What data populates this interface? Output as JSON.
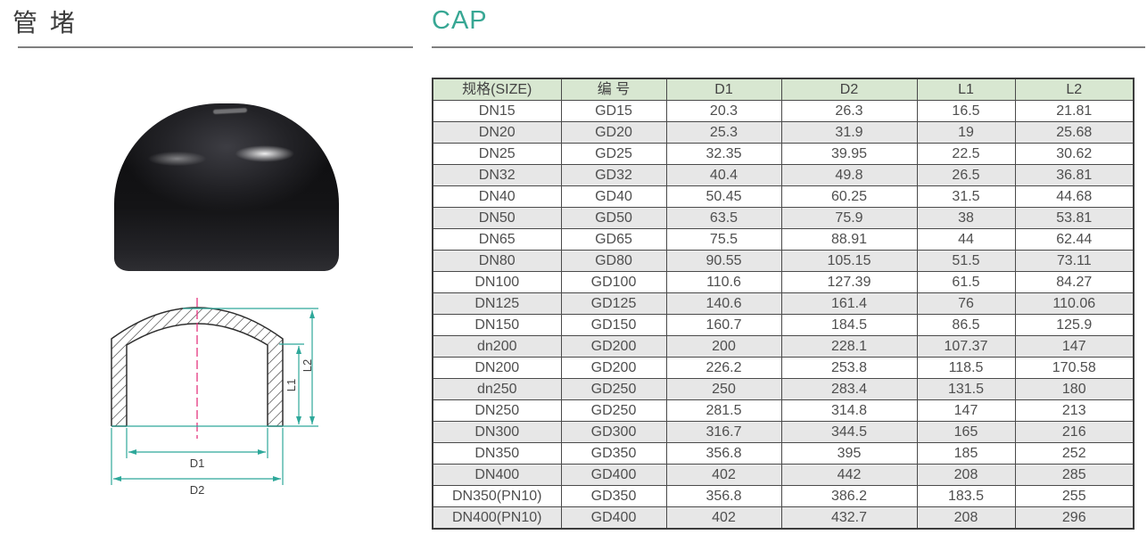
{
  "header": {
    "title_cn": "管 堵",
    "title_en": "CAP"
  },
  "drawing": {
    "labels": {
      "d1": "D1",
      "d2": "D2",
      "l1": "L1",
      "l2": "L2"
    }
  },
  "table": {
    "headers": [
      "规格(SIZE)",
      "编 号",
      "D1",
      "D2",
      "L1",
      "L2"
    ],
    "rows": [
      [
        "DN15",
        "GD15",
        "20.3",
        "26.3",
        "16.5",
        "21.81"
      ],
      [
        "DN20",
        "GD20",
        "25.3",
        "31.9",
        "19",
        "25.68"
      ],
      [
        "DN25",
        "GD25",
        "32.35",
        "39.95",
        "22.5",
        "30.62"
      ],
      [
        "DN32",
        "GD32",
        "40.4",
        "49.8",
        "26.5",
        "36.81"
      ],
      [
        "DN40",
        "GD40",
        "50.45",
        "60.25",
        "31.5",
        "44.68"
      ],
      [
        "DN50",
        "GD50",
        "63.5",
        "75.9",
        "38",
        "53.81"
      ],
      [
        "DN65",
        "GD65",
        "75.5",
        "88.91",
        "44",
        "62.44"
      ],
      [
        "DN80",
        "GD80",
        "90.55",
        "105.15",
        "51.5",
        "73.11"
      ],
      [
        "DN100",
        "GD100",
        "110.6",
        "127.39",
        "61.5",
        "84.27"
      ],
      [
        "DN125",
        "GD125",
        "140.6",
        "161.4",
        "76",
        "110.06"
      ],
      [
        "DN150",
        "GD150",
        "160.7",
        "184.5",
        "86.5",
        "125.9"
      ],
      [
        "dn200",
        "GD200",
        "200",
        "228.1",
        "107.37",
        "147"
      ],
      [
        "DN200",
        "GD200",
        "226.2",
        "253.8",
        "118.5",
        "170.58"
      ],
      [
        "dn250",
        "GD250",
        "250",
        "283.4",
        "131.5",
        "180"
      ],
      [
        "DN250",
        "GD250",
        "281.5",
        "314.8",
        "147",
        "213"
      ],
      [
        "DN300",
        "GD300",
        "316.7",
        "344.5",
        "165",
        "216"
      ],
      [
        "DN350",
        "GD350",
        "356.8",
        "395",
        "185",
        "252"
      ],
      [
        "DN400",
        "GD400",
        "402",
        "442",
        "208",
        "285"
      ],
      [
        "DN350(PN10)",
        "GD350",
        "356.8",
        "386.2",
        "183.5",
        "255"
      ],
      [
        "DN400(PN10)",
        "GD400",
        "402",
        "432.7",
        "208",
        "296"
      ]
    ]
  },
  "colors": {
    "accent_teal": "#38a794",
    "dimension_line": "#2ea89a",
    "centerline_pink": "#e5357f",
    "table_header_bg": "#d8e7d1",
    "row_alt_bg": "#e7e7e7",
    "table_border": "#4a4a4a",
    "text_gray": "#4f4f4f"
  }
}
